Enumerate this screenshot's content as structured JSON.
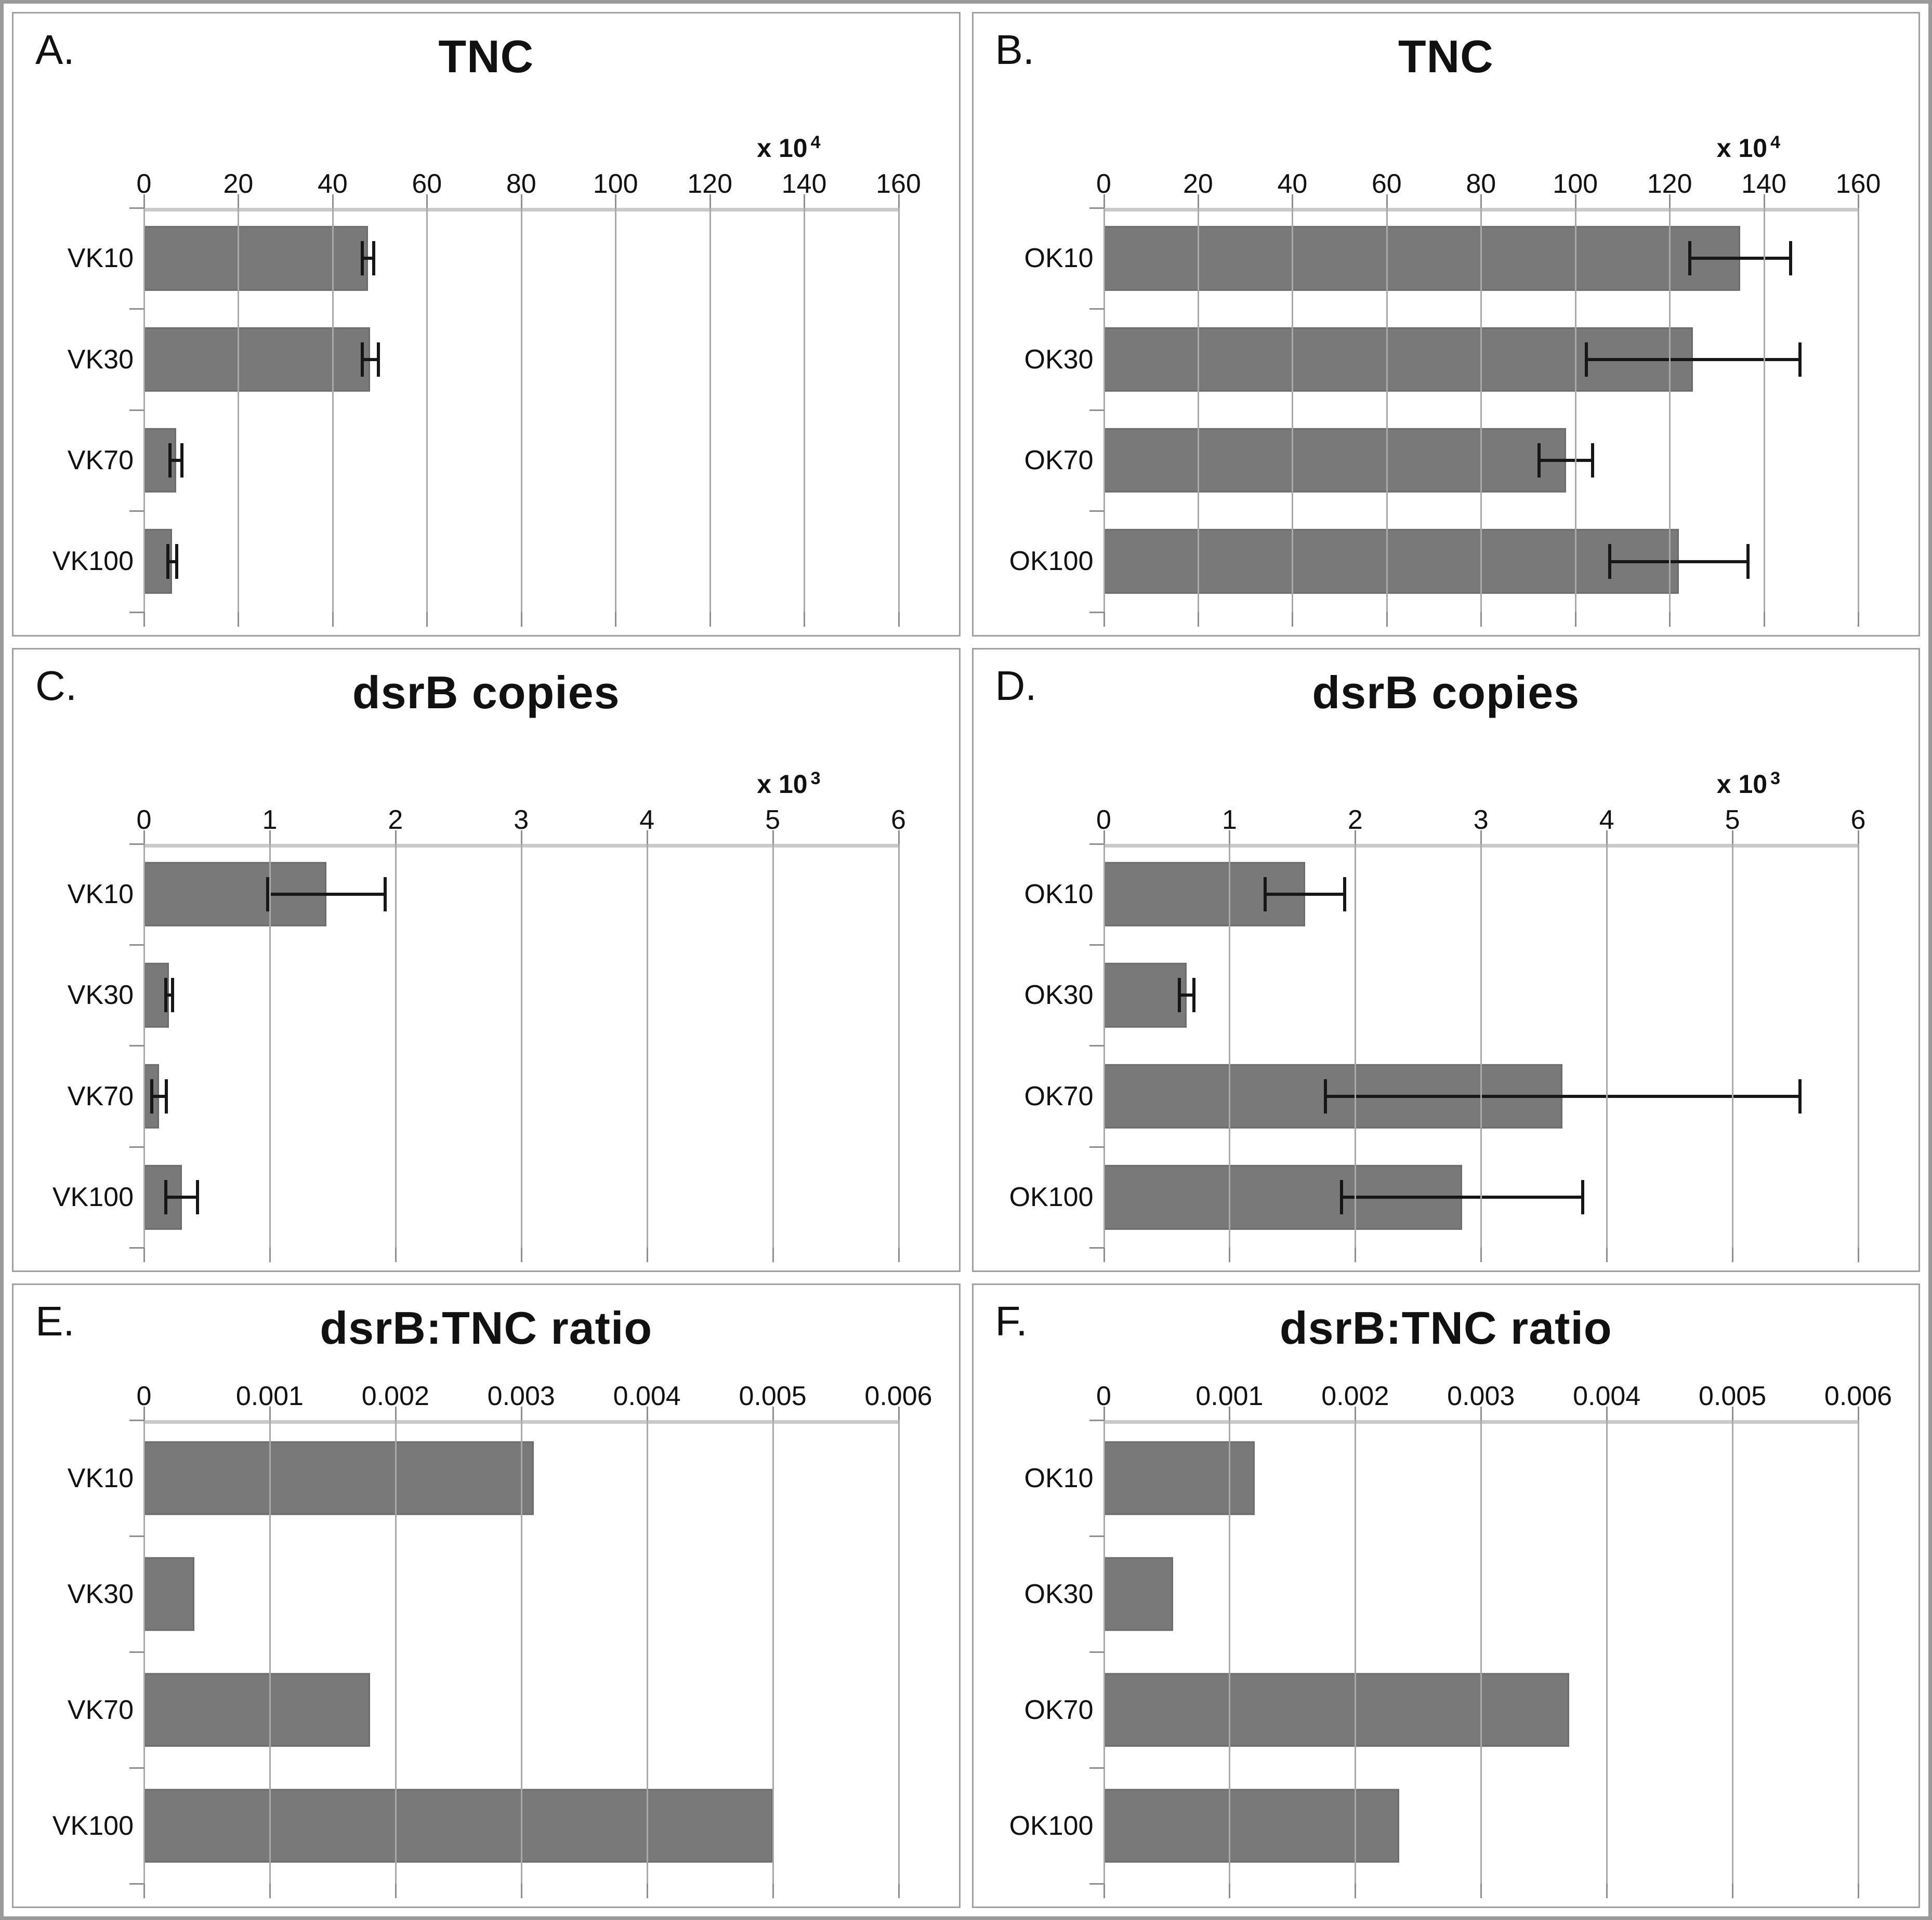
{
  "figure_title": "",
  "bar_color": "#797979",
  "gridline_color": "#a9a9a9",
  "error_bar_color": "#161616",
  "chart_data": [
    {
      "type": "bar",
      "orientation": "horizontal",
      "panel_label": "A.",
      "title": "TNC",
      "scale_label": "x 10",
      "scale_exponent": "4",
      "categories": [
        "VK10",
        "VK30",
        "VK70",
        "VK100"
      ],
      "values": [
        47.5,
        48,
        6.8,
        6
      ],
      "errors": [
        1.5,
        2,
        1.6,
        1.3
      ],
      "xlim": [
        0,
        160
      ],
      "xticks": [
        "0",
        "20",
        "40",
        "60",
        "80",
        "100",
        "120",
        "140",
        "160"
      ],
      "grid": true,
      "legend": "none"
    },
    {
      "type": "bar",
      "orientation": "horizontal",
      "panel_label": "B.",
      "title": "TNC",
      "scale_label": "x 10",
      "scale_exponent": "4",
      "categories": [
        "OK10",
        "OK30",
        "OK70",
        "OK100"
      ],
      "values": [
        135,
        125,
        98,
        122
      ],
      "errors": [
        11,
        23,
        6,
        15
      ],
      "xlim": [
        0,
        160
      ],
      "xticks": [
        "0",
        "20",
        "40",
        "60",
        "80",
        "100",
        "120",
        "140",
        "160"
      ],
      "grid": true,
      "legend": "none"
    },
    {
      "type": "bar",
      "orientation": "horizontal",
      "panel_label": "C.",
      "title": "dsrB copies",
      "scale_label": "x 10",
      "scale_exponent": "3",
      "categories": [
        "VK10",
        "VK30",
        "VK70",
        "VK100"
      ],
      "values": [
        1.45,
        0.2,
        0.12,
        0.3
      ],
      "errors": [
        0.48,
        0.04,
        0.07,
        0.14
      ],
      "xlim": [
        0,
        6
      ],
      "xticks": [
        "0",
        "1",
        "2",
        "3",
        "4",
        "5",
        "6"
      ],
      "grid": true,
      "legend": "none"
    },
    {
      "type": "bar",
      "orientation": "horizontal",
      "panel_label": "D.",
      "title": "dsrB copies",
      "scale_label": "x 10",
      "scale_exponent": "3",
      "categories": [
        "OK10",
        "OK30",
        "OK70",
        "OK100"
      ],
      "values": [
        1.6,
        0.66,
        3.65,
        2.85
      ],
      "errors": [
        0.33,
        0.07,
        1.9,
        0.97
      ],
      "xlim": [
        0,
        6
      ],
      "xticks": [
        "0",
        "1",
        "2",
        "3",
        "4",
        "5",
        "6"
      ],
      "grid": true,
      "legend": "none"
    },
    {
      "type": "bar",
      "orientation": "horizontal",
      "panel_label": "E.",
      "title": "dsrB:TNC ratio",
      "scale_label": "",
      "scale_exponent": "",
      "categories": [
        "VK10",
        "VK30",
        "VK70",
        "VK100"
      ],
      "values": [
        0.0031,
        0.0004,
        0.0018,
        0.005
      ],
      "errors": [
        0,
        0,
        0,
        0
      ],
      "xlim": [
        0,
        0.006
      ],
      "xticks": [
        "0",
        "0.001",
        "0.002",
        "0.003",
        "0.004",
        "0.005",
        "0.006"
      ],
      "grid": true,
      "legend": "none"
    },
    {
      "type": "bar",
      "orientation": "horizontal",
      "panel_label": "F.",
      "title": "dsrB:TNC ratio",
      "scale_label": "",
      "scale_exponent": "",
      "categories": [
        "OK10",
        "OK30",
        "OK70",
        "OK100"
      ],
      "values": [
        0.0012,
        0.00055,
        0.0037,
        0.00235
      ],
      "errors": [
        0,
        0,
        0,
        0
      ],
      "xlim": [
        0,
        0.006
      ],
      "xticks": [
        "0",
        "0.001",
        "0.002",
        "0.003",
        "0.004",
        "0.005",
        "0.006"
      ],
      "grid": true,
      "legend": "none"
    }
  ]
}
